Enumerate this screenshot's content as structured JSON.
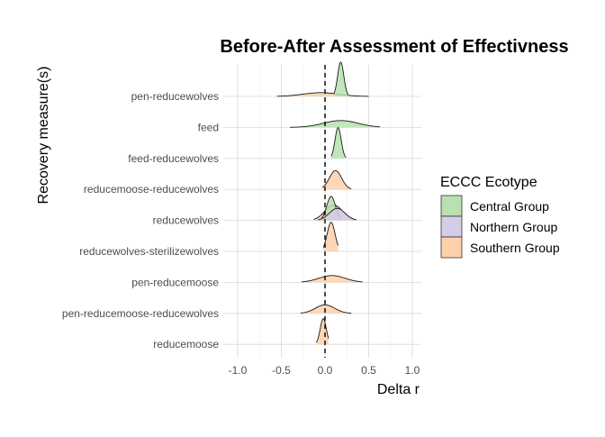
{
  "chart_data": {
    "type": "ridgeline",
    "title": "Before-After Assessment of Effectivness",
    "xlabel": "Delta r",
    "ylabel": "Recovery measure(s)",
    "xlim": [
      -1.1,
      1.1
    ],
    "x_ticks": [
      -1.0,
      -0.5,
      0.0,
      0.5,
      1.0
    ],
    "x_tick_labels": [
      "-1.0",
      "-0.5",
      "0.0",
      "0.5",
      "1.0"
    ],
    "reference_line_x": 0,
    "grid": true,
    "legend": {
      "title": "ECCC Ecotype",
      "placement": "right",
      "entries": [
        {
          "name": "Central Group",
          "color": "#b8e0b0"
        },
        {
          "name": "Northern Group",
          "color": "#d3cde8"
        },
        {
          "name": "Southern Group",
          "color": "#fdd0aa"
        }
      ]
    },
    "categories": [
      "pen-reducewolves",
      "feed",
      "feed-reducewolves",
      "reducemoose-reducewolves",
      "reducewolves",
      "reducewolves-sterilizewolves",
      "pen-reducemoose",
      "pen-reducemoose-reducewolves",
      "reducemoose"
    ],
    "series": [
      {
        "name": "Southern Group",
        "ridges": [
          {
            "category": "pen-reducewolves",
            "center": -0.05,
            "spread": 0.2,
            "height": 0.11,
            "range": [
              -0.55,
              0.5
            ]
          },
          {
            "category": "reducemoose-reducewolves",
            "center": 0.12,
            "spread": 0.07,
            "height": 0.55,
            "range": [
              -0.03,
              0.3
            ]
          },
          {
            "category": "reducewolves",
            "center": 0.1,
            "spread": 0.1,
            "height": 0.45,
            "range": [
              -0.13,
              0.35
            ]
          },
          {
            "category": "reducewolves-sterilizewolves",
            "center": 0.07,
            "spread": 0.045,
            "height": 0.85,
            "range": [
              -0.02,
              0.15
            ]
          },
          {
            "category": "pen-reducemoose",
            "center": 0.08,
            "spread": 0.15,
            "height": 0.2,
            "range": [
              -0.27,
              0.43
            ]
          },
          {
            "category": "pen-reducemoose-reducewolves",
            "center": 0.0,
            "spread": 0.11,
            "height": 0.25,
            "range": [
              -0.28,
              0.3
            ]
          },
          {
            "category": "reducemoose",
            "center": -0.02,
            "spread": 0.035,
            "height": 0.75,
            "range": [
              -0.1,
              0.04
            ]
          }
        ]
      },
      {
        "name": "Central Group",
        "ridges": [
          {
            "category": "pen-reducewolves",
            "center": 0.18,
            "spread": 0.035,
            "height": 1.0,
            "range": [
              0.1,
              0.27
            ]
          },
          {
            "category": "feed",
            "center": 0.18,
            "spread": 0.2,
            "height": 0.2,
            "range": [
              -0.4,
              0.63
            ]
          },
          {
            "category": "feed-reducewolves",
            "center": 0.15,
            "spread": 0.035,
            "height": 0.9,
            "range": [
              0.07,
              0.24
            ]
          },
          {
            "category": "reducewolves",
            "center": 0.07,
            "spread": 0.05,
            "height": 0.7,
            "range": [
              -0.04,
              0.18
            ]
          }
        ]
      },
      {
        "name": "Northern Group",
        "ridges": [
          {
            "category": "reducewolves",
            "center": 0.14,
            "spread": 0.09,
            "height": 0.35,
            "range": [
              -0.08,
              0.36
            ]
          }
        ]
      }
    ]
  }
}
